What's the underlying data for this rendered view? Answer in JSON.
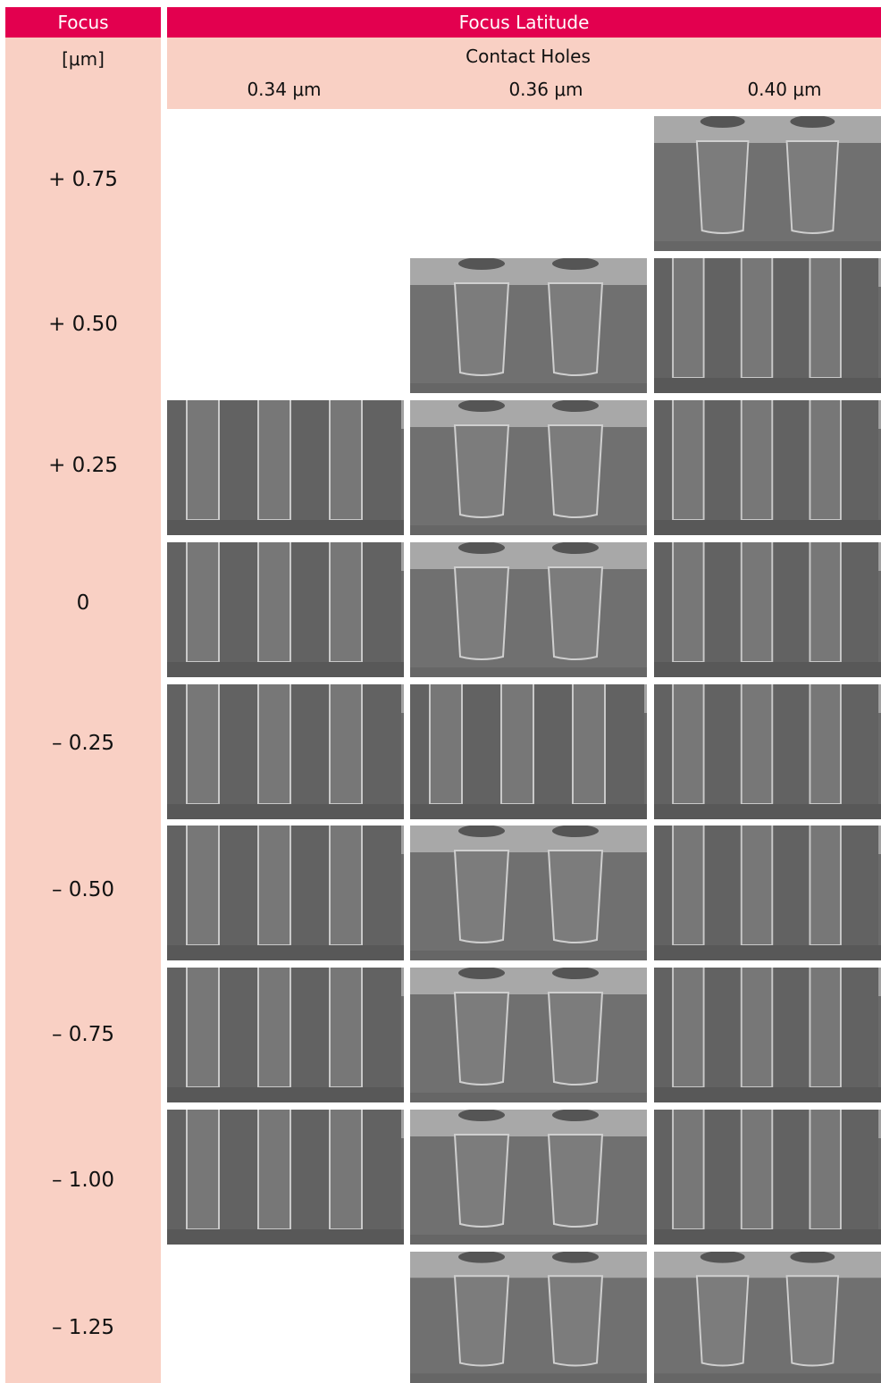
{
  "header": {
    "focus": "Focus",
    "focus_latitude": "Focus Latitude",
    "unit": "[μm]",
    "subheader": "Contact Holes",
    "sizes": [
      "0.34 μm",
      "0.36 μm",
      "0.40 μm"
    ]
  },
  "rows": [
    "+ 0.75",
    "+ 0.50",
    "+ 0.25",
    "0",
    "– 0.25",
    "– 0.50",
    "– 0.75",
    "– 1.00",
    "– 1.25"
  ]
}
